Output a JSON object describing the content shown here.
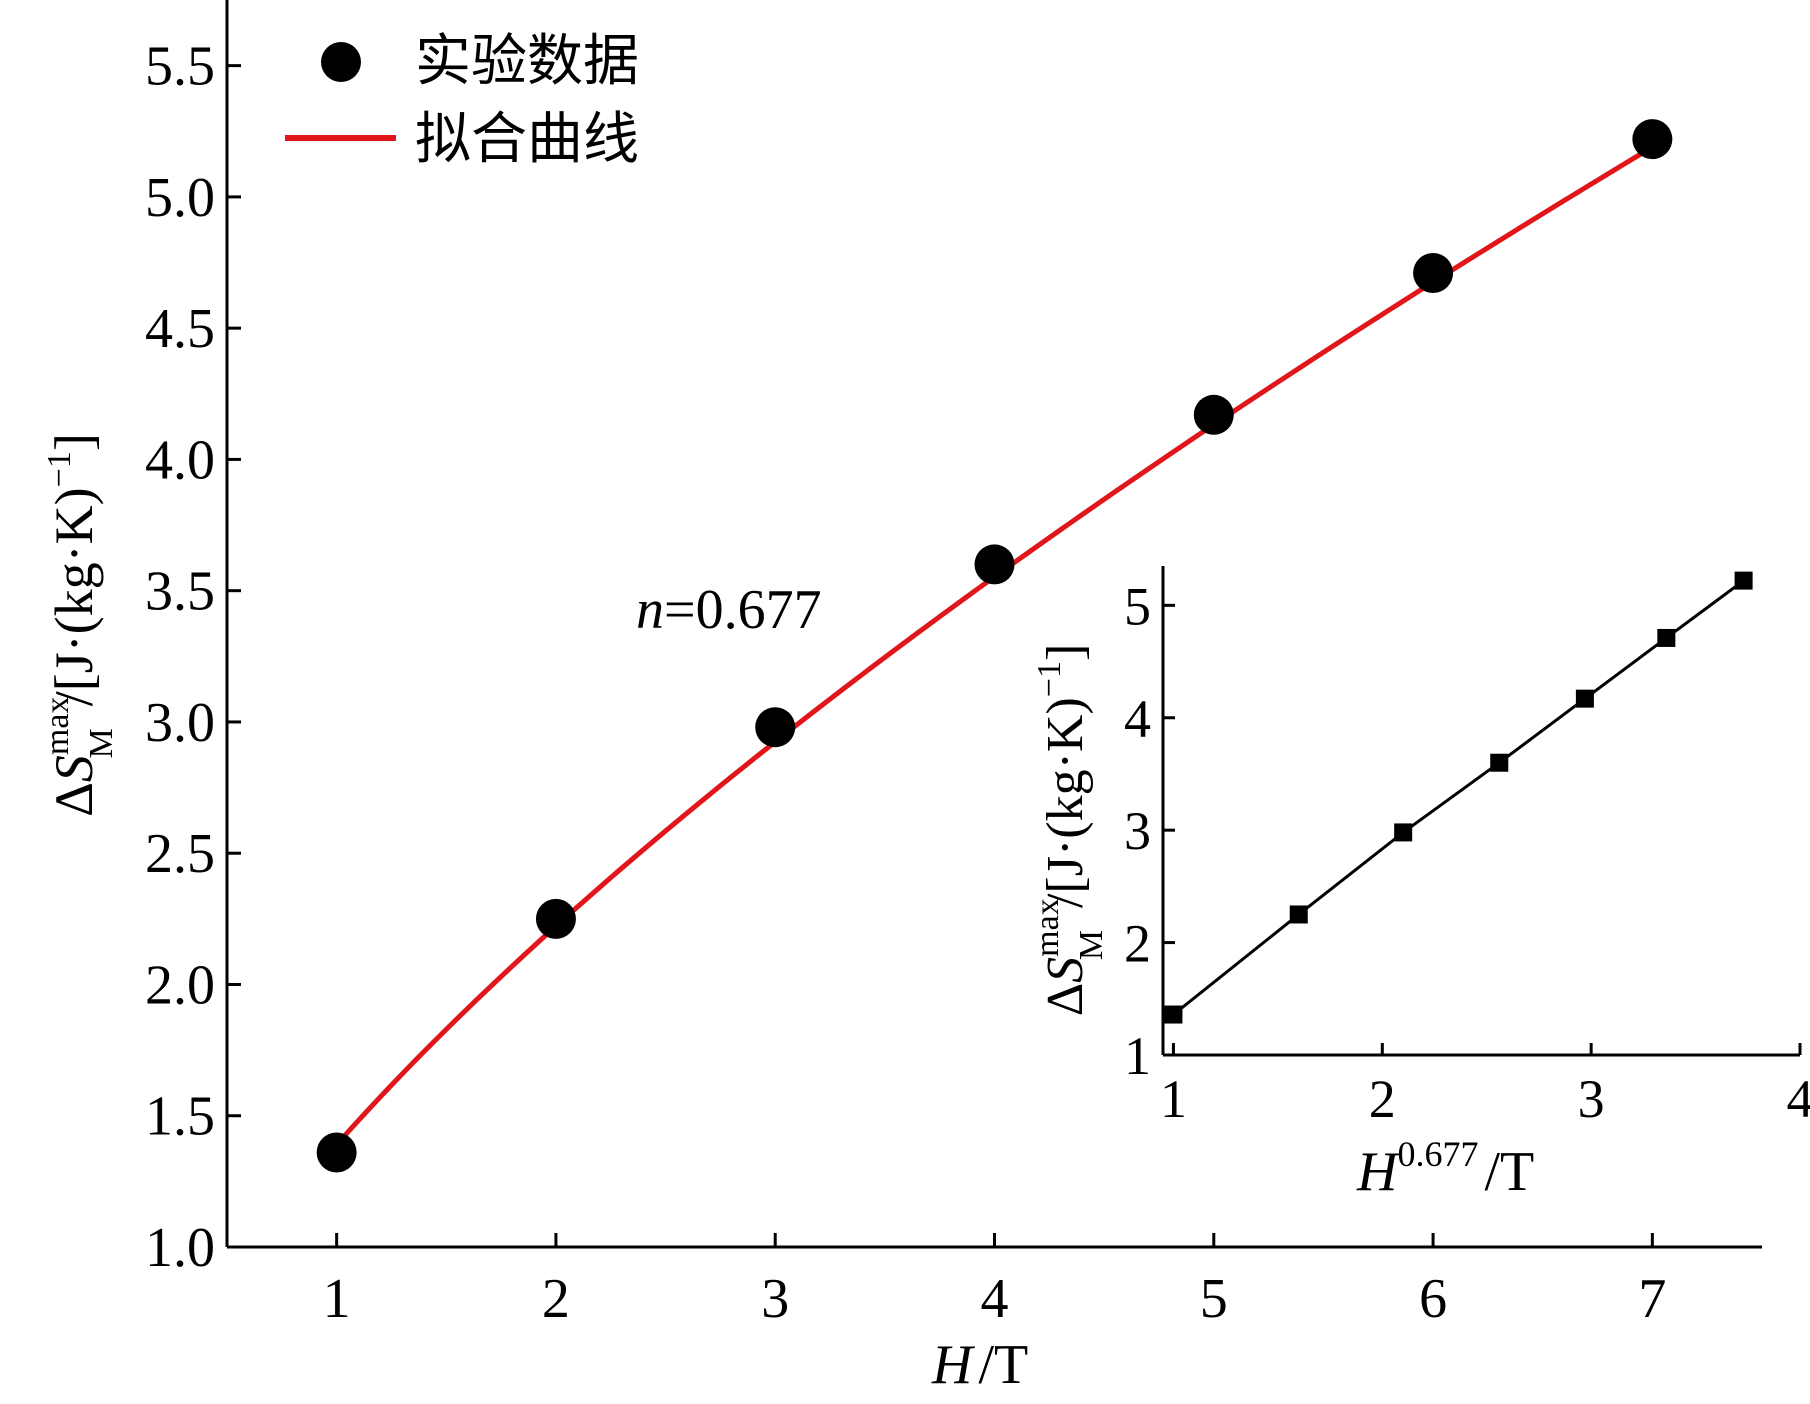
{
  "chart_data": [
    {
      "type": "scatter",
      "xlabel": {
        "italic": "H",
        "rest": "/T"
      },
      "ylabel": {
        "delta": "Δ",
        "s": "S",
        "sup": "max",
        "sub": "M",
        "unit": "/[J·(kg·K)",
        "exp": "−1",
        "close": "]"
      },
      "xlim": [
        0.5,
        7.5
      ],
      "ylim": [
        1.0,
        5.75
      ],
      "xticks": [
        "1",
        "2",
        "3",
        "4",
        "5",
        "6",
        "7"
      ],
      "yticks": [
        "1.0",
        "1.5",
        "2.0",
        "2.5",
        "3.0",
        "3.5",
        "4.0",
        "4.5",
        "5.0",
        "5.5"
      ],
      "annotation": {
        "italic": "n",
        "rest": "=0.677"
      },
      "legend": {
        "position": "top-left",
        "entries": [
          "实验数据",
          "拟合曲线"
        ]
      },
      "series": [
        {
          "name": "实验数据",
          "kind": "points",
          "color": "#000000",
          "x": [
            1,
            2,
            3,
            4,
            5,
            6,
            7
          ],
          "y": [
            1.36,
            2.25,
            2.98,
            3.6,
            4.17,
            4.71,
            5.22
          ]
        },
        {
          "name": "拟合曲线",
          "kind": "line",
          "color": "#e0161b",
          "fit": {
            "a": 1.39,
            "n": 0.677
          }
        }
      ]
    },
    {
      "type": "line",
      "xlabel": {
        "italic": "H",
        "sup": "0.677",
        "rest": "/T"
      },
      "ylabel": {
        "delta": "Δ",
        "s": "S",
        "sup": "max",
        "sub": "M",
        "unit": "/[J·(kg·K)",
        "exp": "−1",
        "close": "]"
      },
      "xlim": [
        0.95,
        4.0
      ],
      "ylim": [
        1.0,
        5.35
      ],
      "xticks": [
        "1",
        "2",
        "3",
        "4"
      ],
      "yticks": [
        "1",
        "2",
        "3",
        "4",
        "5"
      ],
      "series": [
        {
          "kind": "line-with-square-markers",
          "color": "#000000",
          "x": [
            1.0,
            1.6,
            2.1,
            2.56,
            2.97,
            3.36,
            3.73
          ],
          "y": [
            1.36,
            2.25,
            2.98,
            3.6,
            4.17,
            4.71,
            5.22
          ]
        }
      ]
    }
  ]
}
